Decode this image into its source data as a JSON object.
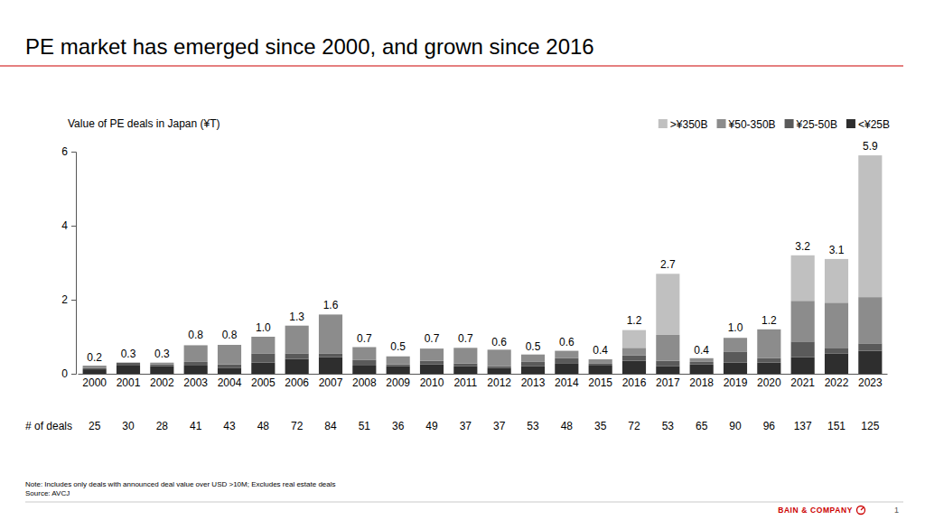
{
  "chart_data": {
    "type": "bar",
    "stacked": true,
    "title": "PE market has emerged since 2000, and grown since 2016",
    "y_axis_title": "Value of PE deals in Japan (¥T)",
    "legend": "top-right",
    "grid": false,
    "categories": [
      "2000",
      "2001",
      "2002",
      "2003",
      "2004",
      "2005",
      "2006",
      "2007",
      "2008",
      "2009",
      "2010",
      "2011",
      "2012",
      "2013",
      "2014",
      "2015",
      "2016",
      "2017",
      "2018",
      "2019",
      "2020",
      "2021",
      "2022",
      "2023"
    ],
    "series": [
      {
        "name": "<¥25B",
        "color": "#2e2e2e",
        "values": [
          0.12,
          0.22,
          0.2,
          0.22,
          0.15,
          0.3,
          0.4,
          0.45,
          0.22,
          0.2,
          0.25,
          0.2,
          0.15,
          0.2,
          0.27,
          0.22,
          0.35,
          0.2,
          0.25,
          0.3,
          0.3,
          0.45,
          0.55,
          0.62
        ]
      },
      {
        "name": "¥25-50B",
        "color": "#5a5a5a",
        "values": [
          0.04,
          0.08,
          0.05,
          0.1,
          0.1,
          0.25,
          0.15,
          0.1,
          0.15,
          0.05,
          0.1,
          0.08,
          0.05,
          0.12,
          0.15,
          0.05,
          0.15,
          0.15,
          0.07,
          0.3,
          0.12,
          0.42,
          0.15,
          0.2
        ]
      },
      {
        "name": "¥50-350B",
        "color": "#8c8c8c",
        "values": [
          0.06,
          0,
          0.05,
          0.45,
          0.53,
          0.45,
          0.75,
          1.05,
          0.35,
          0.22,
          0.33,
          0.42,
          0.45,
          0.2,
          0.2,
          0.12,
          0.2,
          0.7,
          0.1,
          0.37,
          0.78,
          1.1,
          1.22,
          1.25
        ]
      },
      {
        "name": ">¥350B",
        "color": "#c0c0c0",
        "values": [
          0,
          0,
          0,
          0,
          0,
          0,
          0,
          0,
          0,
          0,
          0,
          0,
          0,
          0,
          0,
          0,
          0.48,
          1.65,
          0,
          0,
          0,
          1.23,
          1.18,
          3.83
        ]
      }
    ],
    "totals": [
      0.2,
      0.3,
      0.3,
      0.8,
      0.8,
      1.0,
      1.3,
      1.6,
      0.7,
      0.5,
      0.7,
      0.7,
      0.6,
      0.5,
      0.6,
      0.4,
      1.2,
      2.7,
      0.4,
      1.0,
      1.2,
      3.2,
      3.1,
      5.9
    ],
    "total_labels": [
      "0.2",
      "0.3",
      "0.3",
      "0.8",
      "0.8",
      "1.0",
      "1.3",
      "1.6",
      "0.7",
      "0.5",
      "0.7",
      "0.7",
      "0.6",
      "0.5",
      "0.6",
      "0.4",
      "1.2",
      "2.7",
      "0.4",
      "1.0",
      "1.2",
      "3.2",
      "3.1",
      "5.9"
    ],
    "deal_counts": {
      "label": "# of deals",
      "values": [
        25,
        30,
        28,
        41,
        43,
        48,
        72,
        84,
        51,
        36,
        49,
        37,
        37,
        53,
        48,
        35,
        72,
        53,
        65,
        90,
        96,
        137,
        151,
        125
      ]
    },
    "ylim": [
      0,
      6
    ],
    "yticks": [
      0,
      2,
      4,
      6
    ],
    "note": "Note: Includes only deals with announced deal value over USD >10M; Excludes real estate deals",
    "source": "Source: AVCJ",
    "brand": "BAIN & COMPANY",
    "page_number": 1
  }
}
